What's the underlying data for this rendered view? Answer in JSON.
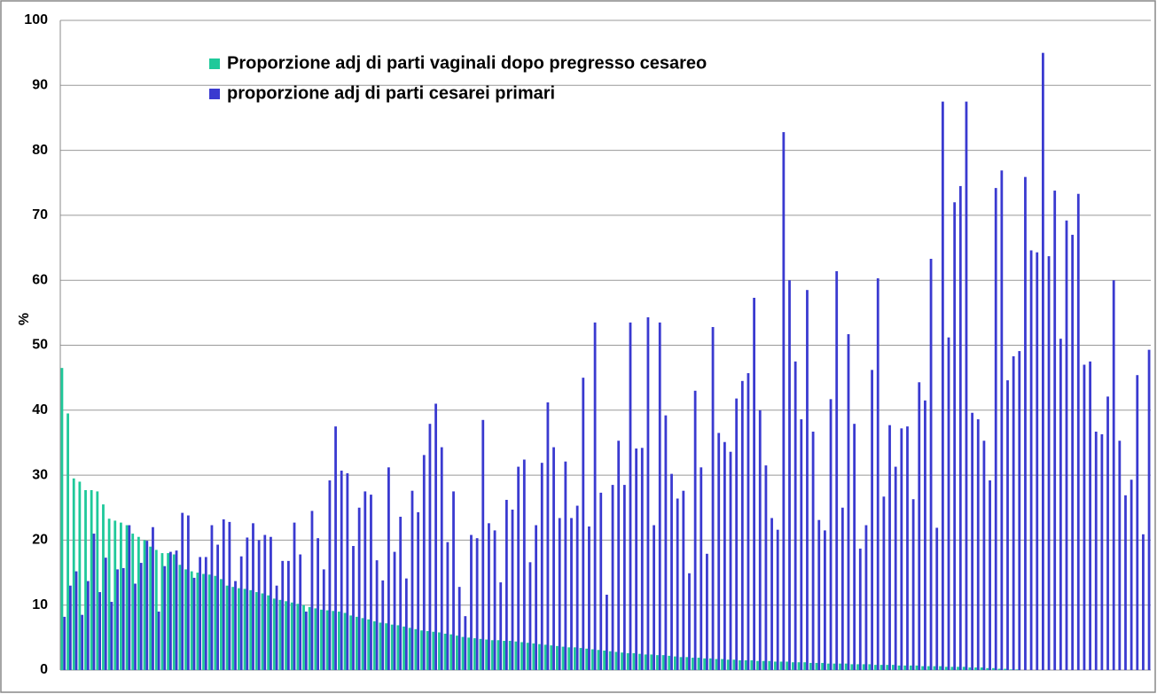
{
  "chart_data": {
    "type": "bar",
    "y_label": "%",
    "categories": [
      null,
      null,
      null,
      null,
      null,
      null,
      null,
      null,
      null,
      null,
      null,
      null,
      null,
      null,
      null,
      null,
      null,
      null,
      null,
      null,
      null,
      null,
      null,
      null,
      null,
      null,
      null,
      null,
      null,
      null,
      null,
      null,
      null,
      null,
      null,
      null,
      null,
      null,
      null,
      null,
      null,
      null,
      null,
      null,
      null,
      null,
      null,
      null,
      null,
      null,
      null,
      null,
      null,
      null,
      null,
      null,
      null,
      null,
      null,
      null,
      null,
      null,
      null,
      null,
      null,
      null,
      null,
      null,
      null,
      null,
      null,
      null,
      null,
      null,
      null,
      null,
      null,
      null,
      null,
      null,
      null,
      null,
      null,
      null,
      null,
      null,
      null,
      null,
      null,
      null,
      null,
      null,
      null,
      null,
      null,
      null,
      null,
      null,
      null,
      null,
      null,
      null,
      null,
      null,
      null,
      null,
      null,
      null,
      null,
      null,
      null,
      null,
      null,
      null,
      null,
      null,
      null,
      null,
      null,
      null,
      null,
      null,
      null,
      null,
      null,
      null,
      null,
      null,
      null,
      null,
      null,
      null,
      null,
      null,
      null,
      null,
      null,
      null,
      null,
      null,
      null,
      null,
      null,
      null,
      null,
      null,
      null,
      null,
      null,
      null,
      null,
      null,
      null,
      null,
      null,
      null,
      null,
      null,
      null,
      null,
      null,
      null,
      null,
      null,
      null,
      null,
      null,
      null,
      null,
      null,
      null,
      null,
      null,
      null,
      null,
      null,
      null,
      null,
      null,
      null,
      null,
      null,
      null,
      null,
      null
    ],
    "series": [
      {
        "name": "Proporzione adj di parti vaginali dopo pregresso cesareo",
        "color": "#1fc99a",
        "values": [
          46.5,
          39.5,
          29.5,
          29,
          27.7,
          27.7,
          27.5,
          25.5,
          23.3,
          23,
          22.7,
          22.3,
          21,
          20.5,
          20,
          19,
          18.5,
          18,
          18,
          17.8,
          16.2,
          15.5,
          15.2,
          15,
          14.8,
          14.7,
          14.5,
          14,
          13,
          12.8,
          12.6,
          12.5,
          12.3,
          12,
          11.8,
          11.5,
          11,
          10.8,
          10.6,
          10.4,
          10.2,
          10,
          9.7,
          9.5,
          9.3,
          9.2,
          9.1,
          9,
          8.8,
          8.4,
          8.2,
          8,
          7.8,
          7.5,
          7.3,
          7.2,
          7,
          6.9,
          6.7,
          6.5,
          6.3,
          6.1,
          6,
          5.9,
          5.8,
          5.6,
          5.5,
          5.3,
          5.1,
          5,
          4.9,
          4.8,
          4.7,
          4.6,
          4.6,
          4.5,
          4.5,
          4.4,
          4.3,
          4.2,
          4.1,
          4,
          3.9,
          3.8,
          3.7,
          3.6,
          3.5,
          3.5,
          3.4,
          3.3,
          3.2,
          3.1,
          3,
          2.9,
          2.8,
          2.7,
          2.6,
          2.6,
          2.5,
          2.4,
          2.4,
          2.3,
          2.3,
          2.2,
          2.1,
          2,
          2,
          1.9,
          1.9,
          1.8,
          1.8,
          1.7,
          1.7,
          1.6,
          1.6,
          1.5,
          1.5,
          1.5,
          1.4,
          1.4,
          1.4,
          1.3,
          1.3,
          1.3,
          1.2,
          1.2,
          1.2,
          1.1,
          1.1,
          1.1,
          1,
          1,
          1,
          1,
          0.9,
          0.9,
          0.9,
          0.9,
          0.8,
          0.8,
          0.8,
          0.8,
          0.7,
          0.7,
          0.7,
          0.7,
          0.6,
          0.6,
          0.6,
          0.6,
          0.5,
          0.5,
          0.5,
          0.5,
          0.4,
          0.4,
          0.4,
          0.3,
          0.3,
          0.2,
          0.2,
          0.1,
          0.1,
          0,
          0,
          0,
          0,
          0,
          0,
          0,
          0,
          0,
          0,
          0,
          0,
          0,
          0,
          0,
          0,
          0,
          0,
          0,
          0,
          0,
          0
        ]
      },
      {
        "name": "proporzione adj di parti cesarei primari",
        "color": "#3a3ad0",
        "values": [
          8.2,
          13,
          15.2,
          8.5,
          13.7,
          21,
          12,
          17.3,
          10.5,
          15.5,
          15.7,
          22.3,
          13.3,
          16.5,
          19.9,
          22,
          9,
          16,
          18.2,
          18.4,
          24.2,
          23.8,
          14.2,
          17.4,
          17.4,
          22.3,
          19.3,
          23.2,
          22.8,
          13.7,
          17.5,
          20.4,
          22.6,
          20,
          20.8,
          20.5,
          13,
          16.8,
          16.8,
          22.7,
          17.8,
          9,
          24.5,
          20.3,
          15.5,
          29.2,
          37.5,
          30.7,
          30.3,
          19.1,
          25,
          27.5,
          27,
          16.9,
          13.8,
          31.2,
          18.2,
          23.6,
          14.1,
          27.6,
          24.3,
          33.1,
          37.9,
          41,
          34.3,
          19.7,
          27.5,
          12.8,
          8.3,
          20.8,
          20.3,
          38.5,
          22.6,
          21.5,
          13.5,
          26.2,
          24.7,
          31.3,
          32.4,
          16.6,
          22.3,
          31.9,
          41.2,
          34.3,
          23.4,
          32.1,
          23.4,
          25.3,
          45,
          22.1,
          53.5,
          27.3,
          11.6,
          28.5,
          35.3,
          28.5,
          53.5,
          34.1,
          34.2,
          54.3,
          22.3,
          53.5,
          39.2,
          30.2,
          26.4,
          27.6,
          14.9,
          43,
          31.2,
          17.9,
          52.8,
          36.5,
          35.1,
          33.6,
          41.8,
          44.5,
          45.7,
          57.3,
          40,
          31.5,
          23.4,
          21.6,
          82.8,
          60,
          47.5,
          38.6,
          58.5,
          36.7,
          23.1,
          21.5,
          41.7,
          61.4,
          25,
          51.7,
          37.9,
          18.7,
          22.3,
          46.2,
          60.3,
          26.7,
          37.7,
          31.3,
          37.2,
          37.5,
          26.3,
          44.3,
          41.5,
          63.3,
          21.9,
          87.5,
          51.2,
          72,
          74.5,
          87.5,
          39.6,
          38.6,
          35.3,
          29.2,
          74.2,
          76.9,
          44.6,
          48.3,
          49.1,
          75.9,
          64.6,
          64.3,
          95,
          63.7,
          73.8,
          51,
          69.2,
          67,
          73.3,
          47,
          47.5,
          36.7,
          36.3,
          42.1,
          60,
          35.3,
          26.9,
          29.3,
          45.4,
          20.9,
          49.3
        ]
      }
    ],
    "ylim": [
      0,
      100
    ],
    "yticks": [
      0,
      10,
      20,
      30,
      40,
      50,
      60,
      70,
      80,
      90,
      100
    ],
    "grid": true,
    "legend": "upper left"
  }
}
